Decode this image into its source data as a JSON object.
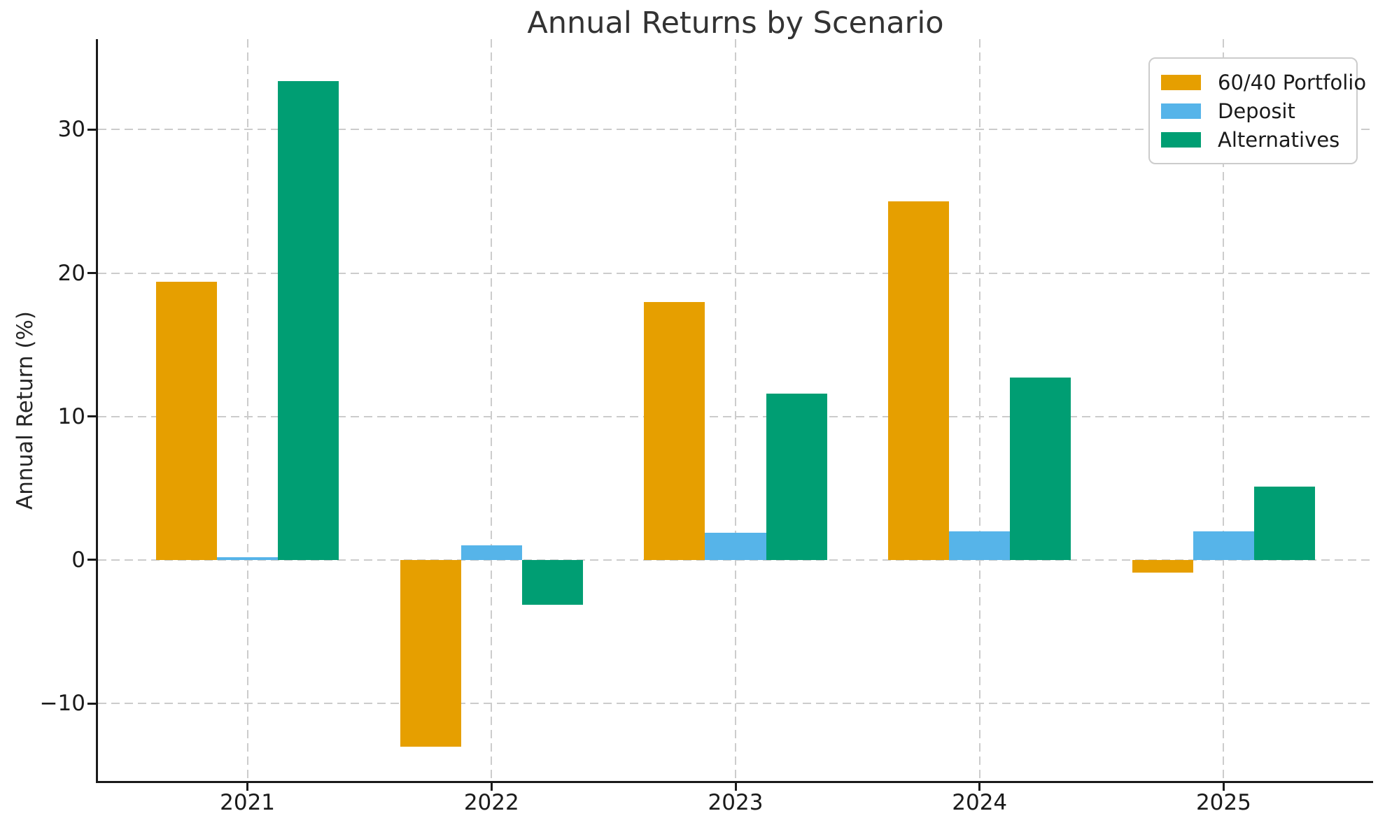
{
  "chart_data": {
    "type": "bar",
    "title": "Annual Returns by Scenario",
    "xlabel": "",
    "ylabel": "Annual Return (%)",
    "categories": [
      "2021",
      "2022",
      "2023",
      "2024",
      "2025"
    ],
    "series": [
      {
        "name": "60/40 Portfolio",
        "color": "#E69F00",
        "values": [
          19.4,
          -13.0,
          18.0,
          25.0,
          -0.9
        ]
      },
      {
        "name": "Deposit",
        "color": "#56B4E9",
        "values": [
          0.2,
          1.0,
          1.9,
          2.0,
          2.0
        ]
      },
      {
        "name": "Alternatives",
        "color": "#009E73",
        "values": [
          33.4,
          -3.1,
          11.6,
          12.7,
          5.1
        ]
      }
    ],
    "ylim": [
      -15.4,
      36.3
    ],
    "yticks": [
      -10,
      0,
      10,
      20,
      30
    ],
    "bar_width_units": 0.25,
    "xlim": [
      -0.6125,
      4.6125
    ],
    "grid": true,
    "grid_style": "dashed",
    "grid_color": "#cccccc",
    "legend_position": "upper right",
    "axis_color": "#1a1a1a",
    "title_color": "#333333",
    "background_color": "#ffffff"
  }
}
